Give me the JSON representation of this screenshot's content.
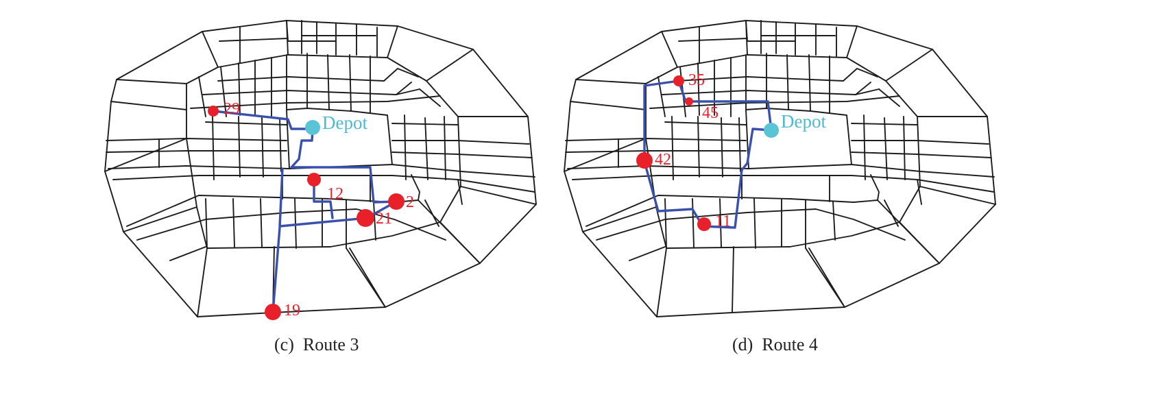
{
  "panels": [
    {
      "caption": "(c)  Route 3",
      "depot_label": "Depot",
      "stops": [
        "29",
        "12",
        "2",
        "21",
        "19"
      ]
    },
    {
      "caption": "(d)  Route 4",
      "depot_label": "Depot",
      "stops": [
        "35",
        "45",
        "42",
        "11"
      ]
    }
  ],
  "colors": {
    "road": "#1c1c1c",
    "route": "#3a50ad",
    "stop": "#e8202a",
    "depot": "#5bc3d6"
  }
}
